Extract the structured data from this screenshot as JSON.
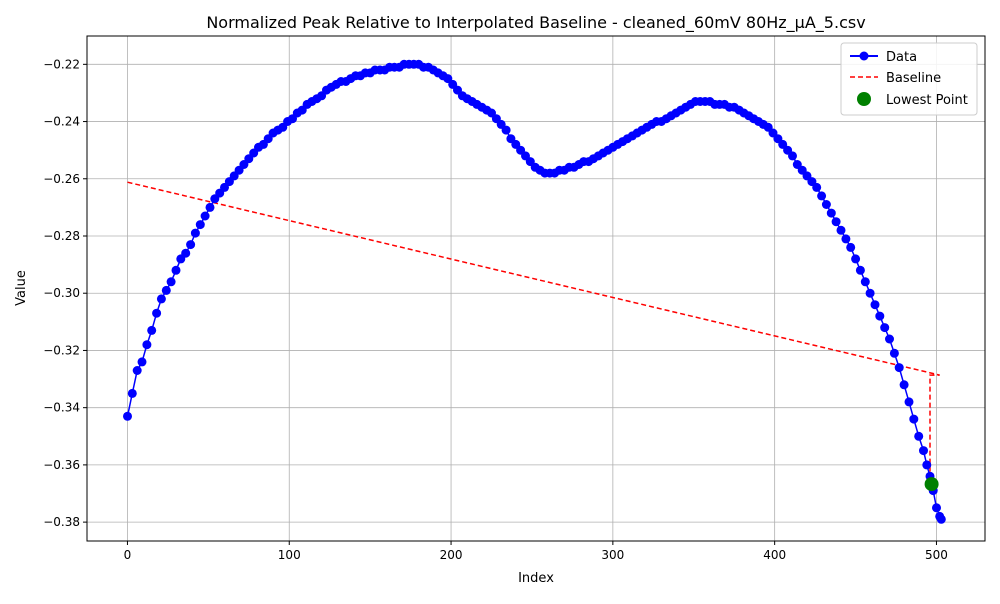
{
  "chart_data": {
    "type": "line",
    "title": "Normalized Peak Relative to Interpolated Baseline - cleaned_60mV 80Hz_μA_5.csv",
    "xlabel": "Index",
    "ylabel": "Value",
    "xlim": [
      -25,
      530
    ],
    "ylim": [
      -0.3866,
      -0.2101
    ],
    "grid": true,
    "legend_position": "top-right",
    "x_ticks": [
      0,
      100,
      200,
      300,
      400,
      500
    ],
    "x_tick_labels": [
      "0",
      "100",
      "200",
      "300",
      "400",
      "500"
    ],
    "y_ticks": [
      -0.38,
      -0.36,
      -0.34,
      -0.32,
      -0.3,
      -0.28,
      -0.26,
      -0.24,
      -0.22
    ],
    "y_tick_labels": [
      "−0.38",
      "−0.36",
      "−0.34",
      "−0.32",
      "−0.30",
      "−0.28",
      "−0.26",
      "−0.24",
      "−0.22"
    ],
    "series": [
      {
        "name": "Data",
        "style": "line-with-markers",
        "color": "#0000ff",
        "x": [
          0,
          3,
          6,
          9,
          12,
          15,
          18,
          21,
          24,
          27,
          30,
          33,
          36,
          39,
          42,
          45,
          48,
          51,
          54,
          57,
          60,
          63,
          66,
          69,
          72,
          75,
          78,
          81,
          84,
          87,
          90,
          93,
          96,
          99,
          102,
          105,
          108,
          111,
          114,
          117,
          120,
          123,
          126,
          129,
          132,
          135,
          138,
          141,
          144,
          147,
          150,
          153,
          156,
          159,
          162,
          165,
          168,
          171,
          174,
          177,
          180,
          183,
          186,
          189,
          192,
          195,
          198,
          201,
          204,
          207,
          210,
          213,
          216,
          219,
          222,
          225,
          228,
          231,
          234,
          237,
          240,
          243,
          246,
          249,
          252,
          255,
          258,
          261,
          264,
          267,
          270,
          273,
          276,
          279,
          282,
          285,
          288,
          291,
          294,
          297,
          300,
          303,
          306,
          309,
          312,
          315,
          318,
          321,
          324,
          327,
          330,
          333,
          336,
          339,
          342,
          345,
          348,
          351,
          354,
          357,
          360,
          363,
          366,
          369,
          372,
          375,
          378,
          381,
          384,
          387,
          390,
          393,
          396,
          399,
          402,
          405,
          408,
          411,
          414,
          417,
          420,
          423,
          426,
          429,
          432,
          435,
          438,
          441,
          444,
          447,
          450,
          453,
          456,
          459,
          462,
          465,
          468,
          471,
          474,
          477,
          480,
          483,
          486,
          489,
          492,
          494,
          496,
          498,
          500,
          502,
          503
        ],
        "y": [
          -0.343,
          -0.335,
          -0.327,
          -0.324,
          -0.318,
          -0.313,
          -0.307,
          -0.302,
          -0.299,
          -0.296,
          -0.292,
          -0.288,
          -0.286,
          -0.283,
          -0.279,
          -0.276,
          -0.273,
          -0.27,
          -0.267,
          -0.265,
          -0.263,
          -0.261,
          -0.259,
          -0.257,
          -0.255,
          -0.253,
          -0.251,
          -0.249,
          -0.248,
          -0.246,
          -0.244,
          -0.243,
          -0.242,
          -0.24,
          -0.239,
          -0.237,
          -0.236,
          -0.234,
          -0.233,
          -0.232,
          -0.231,
          -0.229,
          -0.228,
          -0.227,
          -0.226,
          -0.226,
          -0.225,
          -0.224,
          -0.224,
          -0.223,
          -0.223,
          -0.222,
          -0.222,
          -0.222,
          -0.221,
          -0.221,
          -0.221,
          -0.22,
          -0.22,
          -0.22,
          -0.22,
          -0.221,
          -0.221,
          -0.222,
          -0.223,
          -0.224,
          -0.225,
          -0.227,
          -0.229,
          -0.231,
          -0.232,
          -0.233,
          -0.234,
          -0.235,
          -0.236,
          -0.237,
          -0.239,
          -0.241,
          -0.243,
          -0.246,
          -0.248,
          -0.25,
          -0.252,
          -0.254,
          -0.256,
          -0.257,
          -0.258,
          -0.258,
          -0.258,
          -0.257,
          -0.257,
          -0.256,
          -0.256,
          -0.255,
          -0.254,
          -0.254,
          -0.253,
          -0.252,
          -0.251,
          -0.25,
          -0.249,
          -0.248,
          -0.247,
          -0.246,
          -0.245,
          -0.244,
          -0.243,
          -0.242,
          -0.241,
          -0.24,
          -0.24,
          -0.239,
          -0.238,
          -0.237,
          -0.236,
          -0.235,
          -0.234,
          -0.233,
          -0.233,
          -0.233,
          -0.233,
          -0.234,
          -0.234,
          -0.234,
          -0.235,
          -0.235,
          -0.236,
          -0.237,
          -0.238,
          -0.239,
          -0.24,
          -0.241,
          -0.242,
          -0.244,
          -0.246,
          -0.248,
          -0.25,
          -0.252,
          -0.255,
          -0.257,
          -0.259,
          -0.261,
          -0.263,
          -0.266,
          -0.269,
          -0.272,
          -0.275,
          -0.278,
          -0.281,
          -0.284,
          -0.288,
          -0.292,
          -0.296,
          -0.3,
          -0.304,
          -0.308,
          -0.312,
          -0.316,
          -0.321,
          -0.326,
          -0.332,
          -0.338,
          -0.344,
          -0.35,
          -0.355,
          -0.36,
          -0.364,
          -0.369,
          -0.375,
          -0.378,
          -0.379
        ]
      },
      {
        "name": "Baseline",
        "style": "dashed",
        "color": "#ff0000",
        "x": [
          0,
          502,
          496,
          496,
          497
        ],
        "y": [
          -0.2612,
          -0.3286,
          -0.3286,
          -0.3658,
          -0.3667
        ]
      },
      {
        "name": "Lowest Point",
        "style": "marker",
        "color": "#008000",
        "x": [
          497
        ],
        "y": [
          -0.3667
        ]
      }
    ]
  }
}
